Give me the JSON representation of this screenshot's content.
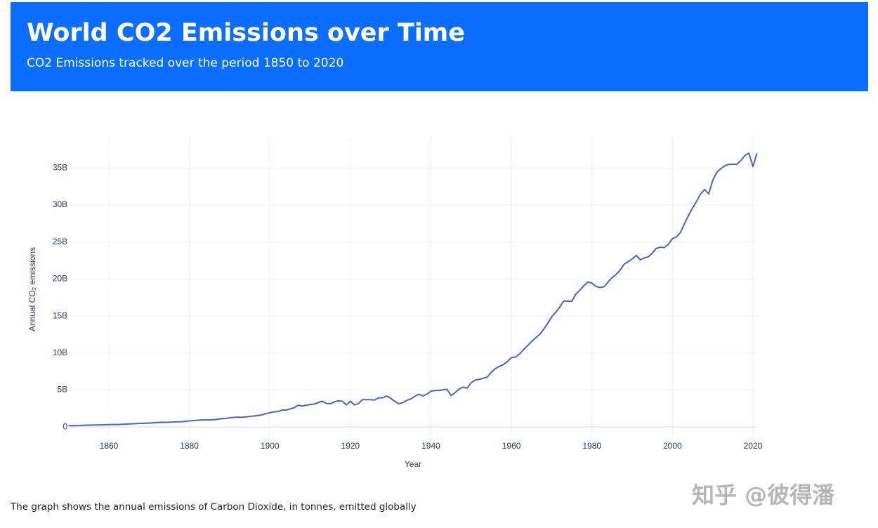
{
  "header": {
    "title": "World CO2 Emissions over Time",
    "subtitle": "CO2 Emissions tracked over the period 1850 to 2020"
  },
  "caption": "The graph shows the annual emissions of Carbon Dioxide, in tonnes, emitted globally",
  "watermark": "知乎 @彼得潘",
  "chart_data": {
    "type": "line",
    "x_label": "Year",
    "y_label": "Annual CO₂ emissions",
    "color": "#4c5fd5",
    "grid": true,
    "xlim": [
      1850,
      2021
    ],
    "xticks": [
      1860,
      1880,
      1900,
      1920,
      1940,
      1960,
      1980,
      2000,
      2020
    ],
    "ylim": [
      -1300000000.0,
      39200000000.0
    ],
    "yticks": [
      0,
      {
        "value": 5000000000.0,
        "label": "5B"
      },
      {
        "value": 10000000000.0,
        "label": "10B"
      },
      {
        "value": 15000000000.0,
        "label": "15B"
      },
      {
        "value": 20000000000.0,
        "label": "20B"
      },
      {
        "value": 25000000000.0,
        "label": "25B"
      },
      {
        "value": 30000000000.0,
        "label": "30B"
      },
      {
        "value": 35000000000.0,
        "label": "35B"
      }
    ],
    "x": [
      1850,
      1851,
      1852,
      1853,
      1854,
      1855,
      1856,
      1857,
      1858,
      1859,
      1860,
      1861,
      1862,
      1863,
      1864,
      1865,
      1866,
      1867,
      1868,
      1869,
      1870,
      1871,
      1872,
      1873,
      1874,
      1875,
      1876,
      1877,
      1878,
      1879,
      1880,
      1881,
      1882,
      1883,
      1884,
      1885,
      1886,
      1887,
      1888,
      1889,
      1890,
      1891,
      1892,
      1893,
      1894,
      1895,
      1896,
      1897,
      1898,
      1899,
      1900,
      1901,
      1902,
      1903,
      1904,
      1905,
      1906,
      1907,
      1908,
      1909,
      1910,
      1911,
      1912,
      1913,
      1914,
      1915,
      1916,
      1917,
      1918,
      1919,
      1920,
      1921,
      1922,
      1923,
      1924,
      1925,
      1926,
      1927,
      1928,
      1929,
      1930,
      1931,
      1932,
      1933,
      1934,
      1935,
      1936,
      1937,
      1938,
      1939,
      1940,
      1941,
      1942,
      1943,
      1944,
      1945,
      1946,
      1947,
      1948,
      1949,
      1950,
      1951,
      1952,
      1953,
      1954,
      1955,
      1956,
      1957,
      1958,
      1959,
      1960,
      1961,
      1962,
      1963,
      1964,
      1965,
      1966,
      1967,
      1968,
      1969,
      1970,
      1971,
      1972,
      1973,
      1974,
      1975,
      1976,
      1977,
      1978,
      1979,
      1980,
      1981,
      1982,
      1983,
      1984,
      1985,
      1986,
      1987,
      1988,
      1989,
      1990,
      1991,
      1992,
      1993,
      1994,
      1995,
      1996,
      1997,
      1998,
      1999,
      2000,
      2001,
      2002,
      2003,
      2004,
      2005,
      2006,
      2007,
      2008,
      2009,
      2010,
      2011,
      2012,
      2013,
      2014,
      2015,
      2016,
      2017,
      2018,
      2019,
      2020,
      2021
    ],
    "values": [
      196000000.0,
      198000000.0,
      207000000.0,
      217000000.0,
      255000000.0,
      260000000.0,
      275000000.0,
      285000000.0,
      295000000.0,
      310000000.0,
      330000000.0,
      345000000.0,
      350000000.0,
      370000000.0,
      400000000.0,
      430000000.0,
      450000000.0,
      480000000.0,
      500000000.0,
      520000000.0,
      540000000.0,
      580000000.0,
      620000000.0,
      660000000.0,
      640000000.0,
      660000000.0,
      690000000.0,
      710000000.0,
      720000000.0,
      770000000.0,
      850000000.0,
      880000000.0,
      920000000.0,
      960000000.0,
      970000000.0,
      980000000.0,
      1000000000.0,
      1050000000.0,
      1140000000.0,
      1160000000.0,
      1260000000.0,
      1310000000.0,
      1340000000.0,
      1320000000.0,
      1380000000.0,
      1450000000.0,
      1500000000.0,
      1570000000.0,
      1650000000.0,
      1800000000.0,
      1950000000.0,
      2050000000.0,
      2100000000.0,
      2300000000.0,
      2300000000.0,
      2450000000.0,
      2600000000.0,
      2950000000.0,
      2850000000.0,
      2950000000.0,
      3050000000.0,
      3100000000.0,
      3300000000.0,
      3500000000.0,
      3200000000.0,
      3150000000.0,
      3400000000.0,
      3550000000.0,
      3500000000.0,
      3000000000.0,
      3500000000.0,
      3000000000.0,
      3200000000.0,
      3700000000.0,
      3700000000.0,
      3700000000.0,
      3650000000.0,
      3950000000.0,
      3950000000.0,
      4200000000.0,
      3900000000.0,
      3500000000.0,
      3150000000.0,
      3300000000.0,
      3600000000.0,
      3800000000.0,
      4150000000.0,
      4450000000.0,
      4200000000.0,
      4450000000.0,
      4850000000.0,
      4950000000.0,
      4950000000.0,
      5050000000.0,
      5100000000.0,
      4250000000.0,
      4650000000.0,
      5150000000.0,
      5400000000.0,
      5250000000.0,
      6000000000.0,
      6350000000.0,
      6450000000.0,
      6600000000.0,
      6750000000.0,
      7400000000.0,
      7900000000.0,
      8200000000.0,
      8450000000.0,
      8850000000.0,
      9400000000.0,
      9450000000.0,
      9850000000.0,
      10450000000.0,
      11000000000.0,
      11550000000.0,
      12050000000.0,
      12500000000.0,
      13200000000.0,
      14000000000.0,
      14900000000.0,
      15500000000.0,
      16200000000.0,
      17050000000.0,
      17000000000.0,
      17000000000.0,
      17950000000.0,
      18500000000.0,
      19100000000.0,
      19600000000.0,
      19450000000.0,
      19000000000.0,
      18850000000.0,
      18950000000.0,
      19600000000.0,
      20200000000.0,
      20600000000.0,
      21200000000.0,
      22000000000.0,
      22350000000.0,
      22700000000.0,
      23200000000.0,
      22600000000.0,
      22850000000.0,
      23000000000.0,
      23500000000.0,
      24150000000.0,
      24300000000.0,
      24250000000.0,
      24700000000.0,
      25450000000.0,
      25700000000.0,
      26300000000.0,
      27500000000.0,
      28600000000.0,
      29600000000.0,
      30500000000.0,
      31500000000.0,
      32100000000.0,
      31500000000.0,
      33300000000.0,
      34400000000.0,
      34900000000.0,
      35300000000.0,
      35500000000.0,
      35500000000.0,
      35500000000.0,
      36000000000.0,
      36700000000.0,
      37000000000.0,
      35200000000.0,
      37000000000.0
    ]
  }
}
